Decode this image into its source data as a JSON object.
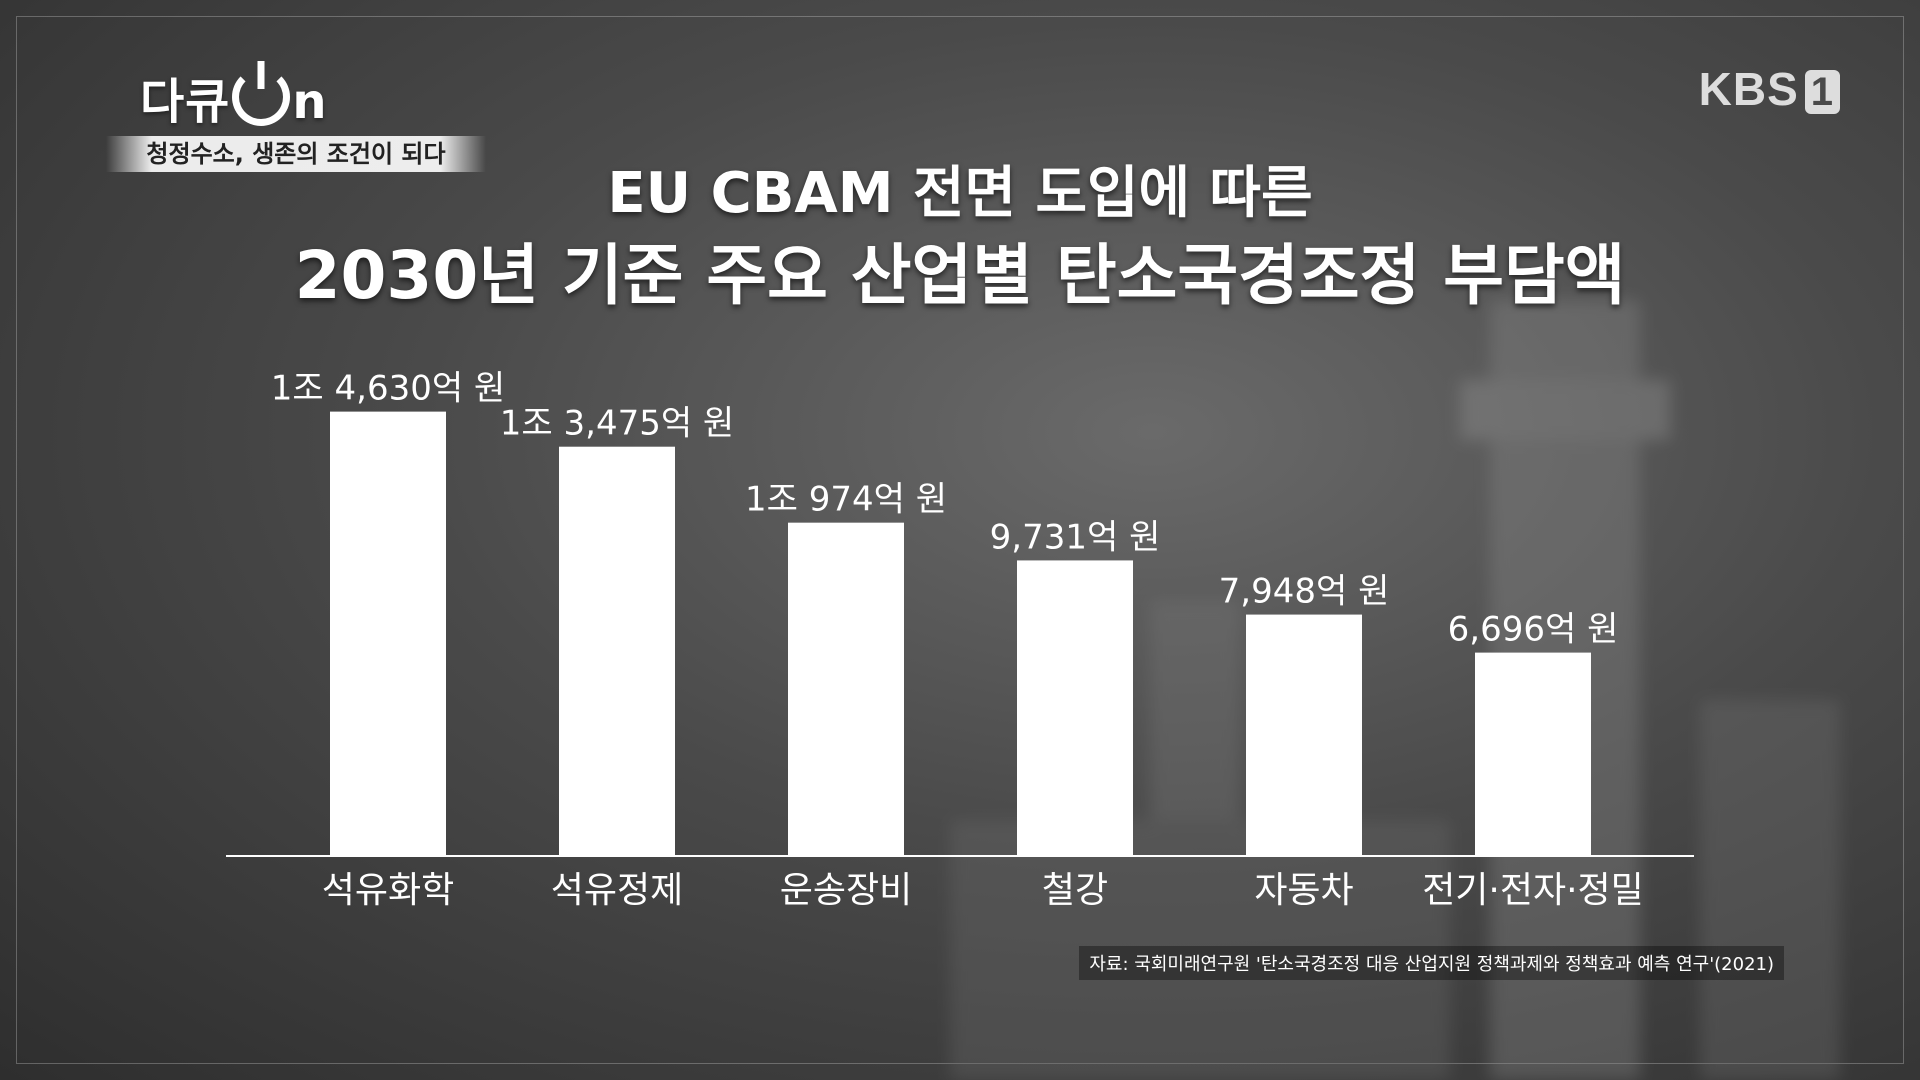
{
  "brand": {
    "logo_prefix": "다큐",
    "logo_suffix": "n",
    "program_subtitle": "청정수소, 생존의 조건이 되다",
    "channel": "KBS",
    "channel_number": "1"
  },
  "colors": {
    "bar": "#ffffff",
    "text": "#ffffff",
    "axis": "#ffffff"
  },
  "chart_data": {
    "type": "bar",
    "title_line1": "EU CBAM 전면 도입에 따른",
    "title_line2": "2030년 기준 주요 산업별 탄소국경조정 부담액",
    "categories": [
      "석유화학",
      "석유정제",
      "운송장비",
      "철강",
      "자동차",
      "전기·전자·정밀"
    ],
    "values": [
      14630,
      13475,
      10974,
      9731,
      7948,
      6696
    ],
    "value_labels": [
      "1조 4,630억 원",
      "1조 3,475억 원",
      "1조 974억 원",
      "9,731억 원",
      "7,948억 원",
      "6,696억 원"
    ],
    "value_unit": "억 원",
    "ylim": [
      0,
      16000
    ],
    "grid": false,
    "source": "자료: 국회미래연구원 '탄소국경조정 대응 산업지원 정책과제와 정책효과 예측 연구'(2021)"
  }
}
